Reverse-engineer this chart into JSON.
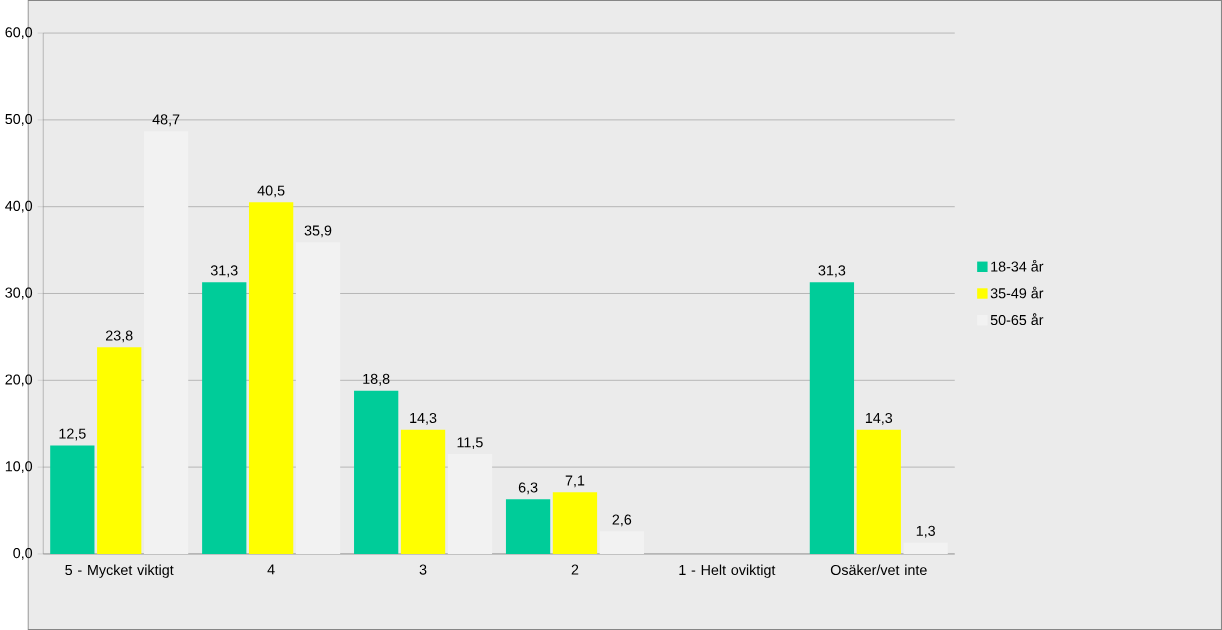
{
  "chart_data": {
    "type": "bar",
    "categories": [
      "5 - Mycket viktigt",
      "4",
      "3",
      "2",
      "1 - Helt oviktigt",
      "Osäker/vet inte"
    ],
    "series": [
      {
        "name": "18-34 år",
        "color": "#00cc99",
        "values": [
          12.5,
          31.3,
          18.8,
          6.3,
          null,
          31.3
        ],
        "value_labels": [
          "12,5",
          "31,3",
          "18,8",
          "6,3",
          null,
          "31,3"
        ]
      },
      {
        "name": "35-49 år",
        "color": "#ffff00",
        "values": [
          23.8,
          40.5,
          14.3,
          7.1,
          null,
          14.3
        ],
        "value_labels": [
          "23,8",
          "40,5",
          "14,3",
          "7,1",
          null,
          "14,3"
        ]
      },
      {
        "name": "50-65 år",
        "color": "#f2f2f2",
        "values": [
          48.7,
          35.9,
          11.5,
          2.6,
          null,
          1.3
        ],
        "value_labels": [
          "48,7",
          "35,9",
          "11,5",
          "2,6",
          null,
          "1,3"
        ]
      }
    ],
    "ylim": [
      0,
      60
    ],
    "yticks": [
      {
        "value": 0,
        "label": "0,0"
      },
      {
        "value": 10,
        "label": "10,0"
      },
      {
        "value": 20,
        "label": "20,0"
      },
      {
        "value": 30,
        "label": "30,0"
      },
      {
        "value": 40,
        "label": "40,0"
      },
      {
        "value": 50,
        "label": "50,0"
      },
      {
        "value": 60,
        "label": "60,0"
      }
    ],
    "grid": "y",
    "legend": "right"
  }
}
